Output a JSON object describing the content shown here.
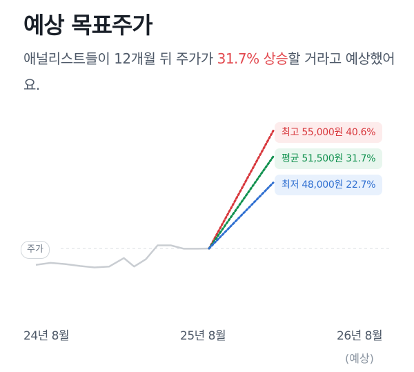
{
  "title": "예상 목표주가",
  "description": {
    "prefix": "애널리스트들이 12개월 뒤 주가가 ",
    "highlight": "31.7% 상승",
    "suffix": "할 거라고 예상했어요."
  },
  "colors": {
    "high": "#d8373c",
    "avg": "#11914f",
    "low": "#2f6fd1",
    "price_line": "#c9cdd2"
  },
  "chart_data": {
    "type": "line",
    "title": "예상 목표주가",
    "x_tick_labels": [
      "24년 8월",
      "25년 8월",
      "26년 8월"
    ],
    "x_tick_sublabels": [
      "",
      "",
      "(예상)"
    ],
    "current_price_label": "주가",
    "price_history_relative": {
      "note_units": "relative price level (current price = 100)",
      "x_months": [
        0,
        1,
        2,
        3,
        4,
        5,
        6,
        6.7,
        7.5,
        8.3,
        9.2,
        10.1,
        11.0,
        11.9
      ],
      "values": [
        94.2,
        94.9,
        94.5,
        93.8,
        93.3,
        93.6,
        96.6,
        93.6,
        96.2,
        101.1,
        101.1,
        99.9,
        99.9,
        100
      ]
    },
    "targets": [
      {
        "key": "high",
        "label": "최고",
        "price": "55,000원",
        "upside": "40.6%",
        "change_pct": 40.6
      },
      {
        "key": "avg",
        "label": "평균",
        "price": "51,500원",
        "upside": "31.7%",
        "change_pct": 31.7
      },
      {
        "key": "low",
        "label": "최저",
        "price": "48,000원",
        "upside": "22.7%",
        "change_pct": 22.7
      }
    ],
    "x_range_months": [
      0,
      24
    ],
    "grid": false
  }
}
